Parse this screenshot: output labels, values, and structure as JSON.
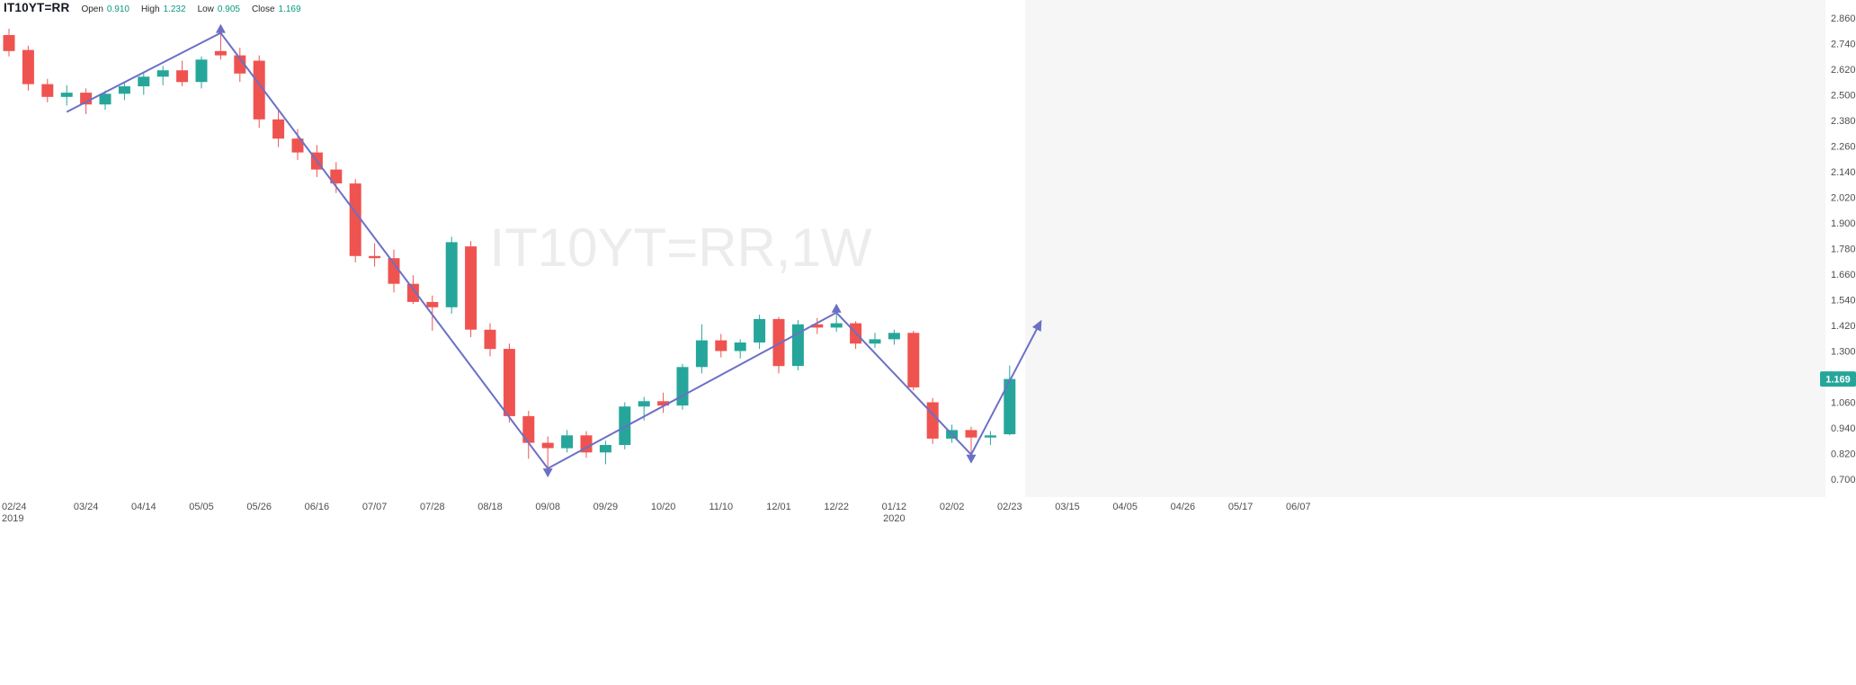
{
  "legend": {
    "symbol": "IT10YT=RR",
    "open_label": "Open",
    "open": "0.910",
    "high_label": "High",
    "high": "1.232",
    "low_label": "Low",
    "low": "0.905",
    "close_label": "Close",
    "close": "1.169"
  },
  "watermark": "IT10YT=RR,1W",
  "price_badge": "1.169",
  "colors": {
    "up": "#26a69a",
    "down": "#ef5350",
    "zigzag": "#6b70c5",
    "value_text": "#089981",
    "symbol_text": "#131722",
    "axis_text": "#4f4f4f",
    "watermark_text": "#ececec",
    "future_background": "#f6f6f6",
    "badge_background": "#26a69a",
    "badge_text": "#ffffff"
  },
  "y_axis": {
    "tick_labels": [
      "2.860",
      "2.740",
      "2.620",
      "2.500",
      "2.380",
      "2.260",
      "2.140",
      "2.020",
      "1.900",
      "1.780",
      "1.660",
      "1.540",
      "1.420",
      "1.300",
      "1.180",
      "1.060",
      "0.940",
      "0.820",
      "0.700"
    ]
  },
  "x_axis": {
    "ticks": [
      {
        "index": 0,
        "label": "02/24",
        "year": "2019"
      },
      {
        "index": 4,
        "label": "03/24"
      },
      {
        "index": 7,
        "label": "04/14"
      },
      {
        "index": 10,
        "label": "05/05"
      },
      {
        "index": 13,
        "label": "05/26"
      },
      {
        "index": 16,
        "label": "06/16"
      },
      {
        "index": 19,
        "label": "07/07"
      },
      {
        "index": 22,
        "label": "07/28"
      },
      {
        "index": 25,
        "label": "08/18"
      },
      {
        "index": 28,
        "label": "09/08"
      },
      {
        "index": 31,
        "label": "09/29"
      },
      {
        "index": 34,
        "label": "10/20"
      },
      {
        "index": 37,
        "label": "11/10"
      },
      {
        "index": 40,
        "label": "12/01"
      },
      {
        "index": 43,
        "label": "12/22"
      },
      {
        "index": 46,
        "label": "01/12",
        "year": "2020"
      },
      {
        "index": 49,
        "label": "02/02"
      },
      {
        "index": 52,
        "label": "02/23"
      },
      {
        "index": 55,
        "label": "03/15"
      },
      {
        "index": 58,
        "label": "04/05"
      },
      {
        "index": 61,
        "label": "04/26"
      },
      {
        "index": 64,
        "label": "05/17"
      },
      {
        "index": 67,
        "label": "06/07"
      }
    ]
  },
  "chart_data": {
    "type": "candlestick",
    "symbol": "IT10YT=RR",
    "interval": "1W",
    "title": "IT10YT=RR,1W",
    "ohlc_readout": {
      "open": 0.91,
      "high": 1.232,
      "low": 0.905,
      "close": 1.169
    },
    "last_price": 1.169,
    "y_axis_labeled_range": [
      0.7,
      2.86
    ],
    "y_tick_step": 0.12,
    "grid": false,
    "legend_position": "top-left",
    "dates": [
      "2019-02-24",
      "2019-03-03",
      "2019-03-10",
      "2019-03-17",
      "2019-03-24",
      "2019-03-31",
      "2019-04-07",
      "2019-04-14",
      "2019-04-21",
      "2019-04-28",
      "2019-05-05",
      "2019-05-12",
      "2019-05-19",
      "2019-05-26",
      "2019-06-02",
      "2019-06-09",
      "2019-06-16",
      "2019-06-23",
      "2019-06-30",
      "2019-07-07",
      "2019-07-14",
      "2019-07-21",
      "2019-07-28",
      "2019-08-04",
      "2019-08-11",
      "2019-08-18",
      "2019-08-25",
      "2019-09-01",
      "2019-09-08",
      "2019-09-15",
      "2019-09-22",
      "2019-09-29",
      "2019-10-06",
      "2019-10-13",
      "2019-10-20",
      "2019-10-27",
      "2019-11-03",
      "2019-11-10",
      "2019-11-17",
      "2019-11-24",
      "2019-12-01",
      "2019-12-08",
      "2019-12-15",
      "2019-12-22",
      "2019-12-29",
      "2020-01-05",
      "2020-01-12",
      "2020-01-19",
      "2020-01-26",
      "2020-02-02",
      "2020-02-09",
      "2020-02-16",
      "2020-02-23"
    ],
    "ohlc": [
      [
        2.78,
        2.81,
        2.68,
        2.705
      ],
      [
        2.71,
        2.73,
        2.52,
        2.55
      ],
      [
        2.55,
        2.575,
        2.465,
        2.49
      ],
      [
        2.49,
        2.545,
        2.45,
        2.51
      ],
      [
        2.51,
        2.53,
        2.41,
        2.455
      ],
      [
        2.455,
        2.52,
        2.43,
        2.505
      ],
      [
        2.505,
        2.56,
        2.475,
        2.54
      ],
      [
        2.54,
        2.605,
        2.5,
        2.585
      ],
      [
        2.585,
        2.635,
        2.545,
        2.615
      ],
      [
        2.615,
        2.66,
        2.54,
        2.56
      ],
      [
        2.56,
        2.68,
        2.53,
        2.665
      ],
      [
        2.705,
        2.79,
        2.665,
        2.685
      ],
      [
        2.685,
        2.72,
        2.56,
        2.6
      ],
      [
        2.66,
        2.685,
        2.345,
        2.385
      ],
      [
        2.385,
        2.425,
        2.255,
        2.295
      ],
      [
        2.295,
        2.34,
        2.195,
        2.23
      ],
      [
        2.23,
        2.265,
        2.115,
        2.15
      ],
      [
        2.15,
        2.185,
        2.04,
        2.085
      ],
      [
        2.085,
        2.105,
        1.715,
        1.745
      ],
      [
        1.745,
        1.805,
        1.695,
        1.735
      ],
      [
        1.735,
        1.775,
        1.575,
        1.615
      ],
      [
        1.615,
        1.655,
        1.52,
        1.53
      ],
      [
        1.53,
        1.56,
        1.395,
        1.505
      ],
      [
        1.505,
        1.835,
        1.475,
        1.81
      ],
      [
        1.79,
        1.815,
        1.365,
        1.4
      ],
      [
        1.4,
        1.43,
        1.275,
        1.31
      ],
      [
        1.31,
        1.335,
        0.965,
        0.995
      ],
      [
        0.995,
        1.02,
        0.795,
        0.87
      ],
      [
        0.87,
        0.9,
        0.75,
        0.845
      ],
      [
        0.845,
        0.93,
        0.825,
        0.905
      ],
      [
        0.905,
        0.925,
        0.8,
        0.825
      ],
      [
        0.825,
        0.88,
        0.77,
        0.86
      ],
      [
        0.86,
        1.06,
        0.84,
        1.04
      ],
      [
        1.04,
        1.085,
        0.975,
        1.065
      ],
      [
        1.065,
        1.105,
        1.01,
        1.045
      ],
      [
        1.045,
        1.24,
        1.025,
        1.225
      ],
      [
        1.225,
        1.425,
        1.195,
        1.35
      ],
      [
        1.35,
        1.38,
        1.27,
        1.3
      ],
      [
        1.3,
        1.355,
        1.265,
        1.34
      ],
      [
        1.34,
        1.47,
        1.31,
        1.45
      ],
      [
        1.45,
        1.46,
        1.195,
        1.23
      ],
      [
        1.23,
        1.445,
        1.21,
        1.425
      ],
      [
        1.425,
        1.455,
        1.38,
        1.41
      ],
      [
        1.41,
        1.48,
        1.39,
        1.43
      ],
      [
        1.43,
        1.44,
        1.31,
        1.335
      ],
      [
        1.335,
        1.385,
        1.315,
        1.355
      ],
      [
        1.355,
        1.4,
        1.33,
        1.385
      ],
      [
        1.385,
        1.395,
        1.115,
        1.13
      ],
      [
        1.06,
        1.08,
        0.865,
        0.89
      ],
      [
        0.89,
        0.955,
        0.87,
        0.93
      ],
      [
        0.93,
        0.945,
        0.815,
        0.895
      ],
      [
        0.895,
        0.925,
        0.86,
        0.905
      ],
      [
        0.91,
        1.232,
        0.905,
        1.169
      ]
    ],
    "zigzag_pivots": [
      {
        "index": 3,
        "price": 2.42
      },
      {
        "index": 11,
        "price": 2.79,
        "arrow": "up"
      },
      {
        "index": 28,
        "price": 0.75,
        "arrow": "down"
      },
      {
        "index": 43,
        "price": 1.48,
        "arrow": "up"
      },
      {
        "index": 50,
        "price": 0.815,
        "arrow": "down"
      },
      {
        "index": 53.6,
        "price": 1.435,
        "arrow": "end"
      }
    ]
  }
}
